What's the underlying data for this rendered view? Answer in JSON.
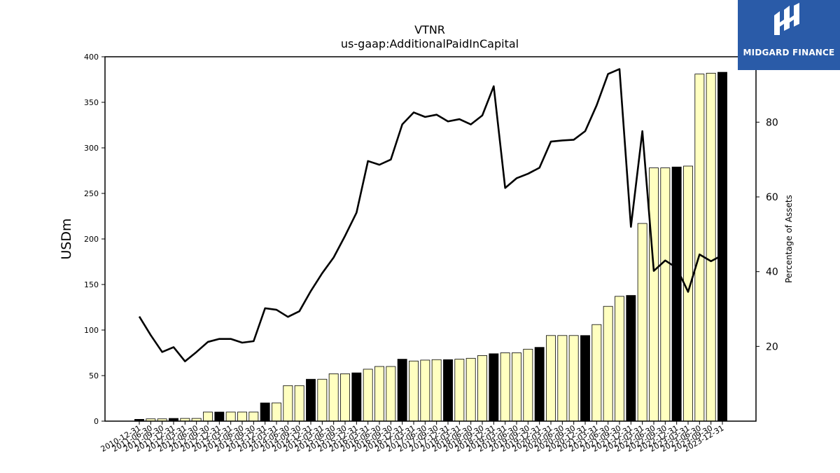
{
  "logo": {
    "text": "MIDGARD FINANCE"
  },
  "chart_data": {
    "type": "bar",
    "title": "VTNR",
    "subtitle": "us-gaap:AdditionalPaidInCapital",
    "ylabel": "USDm",
    "y2label": "Percentage of Assets",
    "ylim": [
      0,
      400
    ],
    "y2lim": [
      0,
      97.5
    ],
    "yticks": [
      0,
      50,
      100,
      150,
      200,
      250,
      300,
      350,
      400
    ],
    "y2ticks": [
      20,
      40,
      60,
      80
    ],
    "grid": false,
    "categories": [
      "2010-12-31",
      "2011-06-30",
      "2011-09-30",
      "2011-12-31",
      "2012-03-31",
      "2012-06-30",
      "2012-09-30",
      "2012-12-31",
      "2013-03-31",
      "2013-06-30",
      "2013-09-30",
      "2013-12-31",
      "2014-03-31",
      "2014-06-30",
      "2014-09-30",
      "2014-12-31",
      "2015-03-31",
      "2015-06-30",
      "2015-09-30",
      "2015-12-31",
      "2016-03-31",
      "2016-06-30",
      "2016-09-30",
      "2016-12-31",
      "2017-03-31",
      "2017-06-30",
      "2017-09-30",
      "2017-12-31",
      "2018-03-31",
      "2018-06-30",
      "2018-09-30",
      "2018-12-31",
      "2019-03-31",
      "2019-06-30",
      "2019-09-30",
      "2019-12-31",
      "2020-03-31",
      "2020-06-30",
      "2020-09-30",
      "2020-12-31",
      "2021-03-31",
      "2021-06-30",
      "2021-09-30",
      "2021-12-31",
      "2022-03-31",
      "2022-06-30",
      "2022-09-30",
      "2022-12-31",
      "2023-03-31",
      "2023-06-30",
      "2023-09-30",
      "2023-12-31"
    ],
    "values": [
      2,
      2.5,
      2.5,
      3,
      3,
      3,
      10,
      10,
      10,
      10,
      10,
      20,
      20,
      39,
      39,
      46,
      46,
      52,
      52,
      53,
      57,
      60,
      60,
      68,
      66,
      67,
      67.5,
      67.5,
      68,
      69,
      72,
      74,
      75,
      75,
      79,
      81,
      94,
      94,
      94,
      94,
      106,
      126,
      137,
      138,
      217,
      278,
      278,
      279,
      280,
      381,
      382,
      383
    ],
    "annual": [
      true,
      false,
      false,
      true,
      false,
      false,
      false,
      true,
      false,
      false,
      false,
      true,
      false,
      false,
      false,
      true,
      false,
      false,
      false,
      true,
      false,
      false,
      false,
      true,
      false,
      false,
      false,
      true,
      false,
      false,
      false,
      true,
      false,
      false,
      false,
      true,
      false,
      false,
      false,
      true,
      false,
      false,
      false,
      true,
      false,
      false,
      false,
      true,
      false,
      false,
      false,
      true
    ],
    "series": [
      {
        "values": [
          28,
          23,
          18.5,
          19.8,
          16,
          18.5,
          21.2,
          22,
          22,
          21,
          21.4,
          30.2,
          29.8,
          27.9,
          29.4,
          34.8,
          39.6,
          43.8,
          49.6,
          55.8,
          69.6,
          68.6,
          70,
          79.4,
          82.6,
          81.4,
          82,
          80.2,
          80.8,
          79.4,
          81.8,
          89.6,
          62.4,
          65,
          66.2,
          67.8,
          74.8,
          75.1,
          75.3,
          77.6,
          84.5,
          92.9,
          94.2,
          52,
          77.6,
          40.2,
          43,
          41,
          34.6,
          44.6,
          42.8,
          44.4
        ]
      }
    ]
  }
}
